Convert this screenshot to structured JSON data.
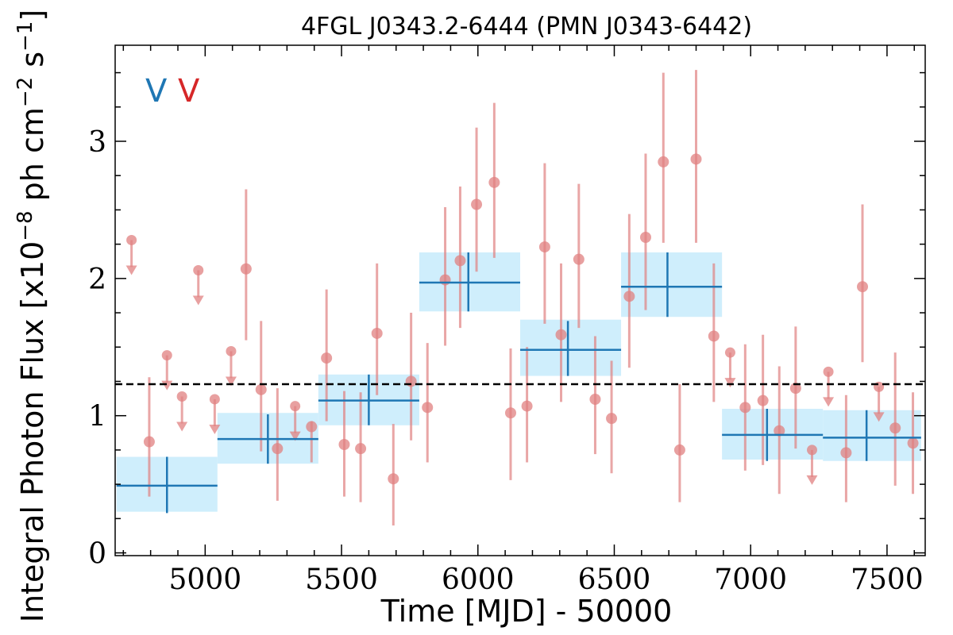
{
  "chart_data": {
    "type": "scatter",
    "title": "4FGL J0343.2-6444 (PMN J0343-6442)",
    "xlabel": "Time [MJD] - 50000",
    "ylabel_prefix": "Integral Photon Flux [x10",
    "ylabel_exp1": "−8",
    "ylabel_mid": " ph cm",
    "ylabel_exp2": "−2",
    "ylabel_mid2": " s",
    "ylabel_exp3": "−1",
    "ylabel_suffix": "]",
    "xlim": [
      4670,
      7640
    ],
    "ylim": [
      -0.02,
      3.7
    ],
    "xticks": [
      5000,
      5500,
      6000,
      6500,
      7000,
      7500
    ],
    "yticks": [
      0,
      1,
      2,
      3
    ],
    "grid": false,
    "reference_line": 1.23,
    "corner_labels": [
      {
        "text": "V",
        "color": "#1f77b4"
      },
      {
        "text": "V",
        "color": "#d62728"
      }
    ],
    "colors": {
      "binned_line": "#1f77b4",
      "binned_box": "#cfeefc",
      "points": "#e08080",
      "reference": "#000000"
    },
    "binned_series": [
      {
        "x": 4860,
        "xmin": 4675,
        "xmax": 5045,
        "y": 0.49,
        "ylo": 0.29,
        "yhi": 0.7,
        "boxlo": 0.3,
        "boxhi": 0.7
      },
      {
        "x": 5230,
        "xmin": 5045,
        "xmax": 5415,
        "y": 0.83,
        "ylo": 0.65,
        "yhi": 1.01,
        "boxlo": 0.65,
        "boxhi": 1.02
      },
      {
        "x": 5600,
        "xmin": 5415,
        "xmax": 5785,
        "y": 1.11,
        "ylo": 0.93,
        "yhi": 1.3,
        "boxlo": 0.93,
        "boxhi": 1.3
      },
      {
        "x": 5965,
        "xmin": 5785,
        "xmax": 6155,
        "y": 1.97,
        "ylo": 1.76,
        "yhi": 2.19,
        "boxlo": 1.76,
        "boxhi": 2.19
      },
      {
        "x": 6330,
        "xmin": 6155,
        "xmax": 6525,
        "y": 1.48,
        "ylo": 1.29,
        "yhi": 1.69,
        "boxlo": 1.29,
        "boxhi": 1.7
      },
      {
        "x": 6695,
        "xmin": 6525,
        "xmax": 6895,
        "y": 1.94,
        "ylo": 1.72,
        "yhi": 2.19,
        "boxlo": 1.72,
        "boxhi": 2.19
      },
      {
        "x": 7060,
        "xmin": 6895,
        "xmax": 7265,
        "y": 0.86,
        "ylo": 0.67,
        "yhi": 1.05,
        "boxlo": 0.68,
        "boxhi": 1.05
      },
      {
        "x": 7425,
        "xmin": 7265,
        "xmax": 7625,
        "y": 0.84,
        "ylo": 0.67,
        "yhi": 1.04,
        "boxlo": 0.67,
        "boxhi": 1.04
      }
    ],
    "points_series": [
      {
        "x": 4795,
        "y": 0.81,
        "ylo": 0.41,
        "yhi": 1.28
      },
      {
        "x": 5150,
        "y": 2.07,
        "ylo": 1.55,
        "yhi": 2.65
      },
      {
        "x": 5205,
        "y": 1.19,
        "ylo": 0.74,
        "yhi": 1.69
      },
      {
        "x": 5265,
        "y": 0.76,
        "ylo": 0.38,
        "yhi": 1.2
      },
      {
        "x": 5390,
        "y": 0.92,
        "ylo": 0.66,
        "yhi": 0.96
      },
      {
        "x": 5445,
        "y": 1.42,
        "ylo": 0.96,
        "yhi": 1.92
      },
      {
        "x": 5510,
        "y": 0.79,
        "ylo": 0.41,
        "yhi": 1.18
      },
      {
        "x": 5570,
        "y": 0.76,
        "ylo": 0.37,
        "yhi": 1.17
      },
      {
        "x": 5630,
        "y": 1.6,
        "ylo": 1.15,
        "yhi": 2.11
      },
      {
        "x": 5690,
        "y": 0.54,
        "ylo": 0.2,
        "yhi": 0.94
      },
      {
        "x": 5755,
        "y": 1.25,
        "ylo": 0.82,
        "yhi": 1.75
      },
      {
        "x": 5815,
        "y": 1.06,
        "ylo": 0.66,
        "yhi": 1.53
      },
      {
        "x": 5880,
        "y": 1.99,
        "ylo": 1.51,
        "yhi": 2.52
      },
      {
        "x": 5935,
        "y": 2.13,
        "ylo": 1.64,
        "yhi": 2.67
      },
      {
        "x": 5995,
        "y": 2.54,
        "ylo": 2.05,
        "yhi": 3.1
      },
      {
        "x": 6060,
        "y": 2.7,
        "ylo": 2.15,
        "yhi": 3.28
      },
      {
        "x": 6120,
        "y": 1.02,
        "ylo": 0.53,
        "yhi": 1.49
      },
      {
        "x": 6180,
        "y": 1.07,
        "ylo": 0.66,
        "yhi": 1.5
      },
      {
        "x": 6245,
        "y": 2.23,
        "ylo": 1.67,
        "yhi": 2.84
      },
      {
        "x": 6305,
        "y": 1.59,
        "ylo": 1.1,
        "yhi": 2.11
      },
      {
        "x": 6370,
        "y": 2.14,
        "ylo": 1.64,
        "yhi": 2.69
      },
      {
        "x": 6430,
        "y": 1.12,
        "ylo": 0.72,
        "yhi": 1.58
      },
      {
        "x": 6490,
        "y": 0.98,
        "ylo": 0.58,
        "yhi": 1.4
      },
      {
        "x": 6555,
        "y": 1.87,
        "ylo": 1.35,
        "yhi": 2.47
      },
      {
        "x": 6615,
        "y": 2.3,
        "ylo": 1.77,
        "yhi": 2.91
      },
      {
        "x": 6680,
        "y": 2.85,
        "ylo": 2.26,
        "yhi": 3.5
      },
      {
        "x": 6740,
        "y": 0.75,
        "ylo": 0.37,
        "yhi": 1.23
      },
      {
        "x": 6800,
        "y": 2.87,
        "ylo": 2.26,
        "yhi": 3.52
      },
      {
        "x": 6865,
        "y": 1.58,
        "ylo": 1.1,
        "yhi": 2.11
      },
      {
        "x": 6980,
        "y": 1.06,
        "ylo": 0.6,
        "yhi": 1.52
      },
      {
        "x": 7045,
        "y": 1.11,
        "ylo": 0.64,
        "yhi": 1.59
      },
      {
        "x": 7105,
        "y": 0.89,
        "ylo": 0.43,
        "yhi": 1.36
      },
      {
        "x": 7165,
        "y": 1.2,
        "ylo": 0.76,
        "yhi": 1.65
      },
      {
        "x": 7350,
        "y": 0.73,
        "ylo": 0.37,
        "yhi": 1.15
      },
      {
        "x": 7410,
        "y": 1.94,
        "ylo": 1.39,
        "yhi": 2.54
      },
      {
        "x": 7530,
        "y": 0.91,
        "ylo": 0.49,
        "yhi": 1.46
      },
      {
        "x": 7595,
        "y": 0.8,
        "ylo": 0.43,
        "yhi": 1.17
      }
    ],
    "upper_limits": [
      {
        "x": 4730,
        "y": 2.28
      },
      {
        "x": 4860,
        "y": 1.44
      },
      {
        "x": 4915,
        "y": 1.14
      },
      {
        "x": 4975,
        "y": 2.06
      },
      {
        "x": 5035,
        "y": 1.12
      },
      {
        "x": 5095,
        "y": 1.47
      },
      {
        "x": 5330,
        "y": 1.07
      },
      {
        "x": 6925,
        "y": 1.46
      },
      {
        "x": 7225,
        "y": 0.75
      },
      {
        "x": 7285,
        "y": 1.32
      },
      {
        "x": 7470,
        "y": 1.21
      }
    ]
  }
}
